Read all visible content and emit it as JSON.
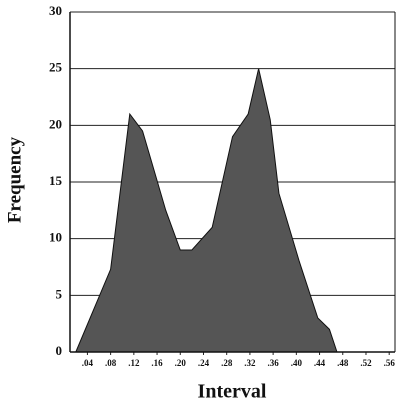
{
  "chart_data": {
    "type": "area",
    "x_label": "Interval",
    "y_label": "Frequency",
    "x": [
      0.02,
      0.08,
      0.113,
      0.135,
      0.155,
      0.175,
      0.2,
      0.22,
      0.255,
      0.29,
      0.317,
      0.335,
      0.355,
      0.37,
      0.405,
      0.437,
      0.457,
      0.47
    ],
    "values": [
      0,
      7.3,
      21,
      19.5,
      16,
      12.5,
      9,
      9,
      11,
      19,
      21,
      25,
      20.5,
      14,
      8,
      3,
      2,
      0
    ],
    "color": "#555555",
    "xlim": [
      0.01,
      0.57
    ],
    "xticks": [
      {
        "value": 0.04,
        "label": ".04"
      },
      {
        "value": 0.08,
        "label": ".08"
      },
      {
        "value": 0.12,
        "label": ".12"
      },
      {
        "value": 0.16,
        "label": ".16"
      },
      {
        "value": 0.2,
        "label": ".20"
      },
      {
        "value": 0.24,
        "label": ".24"
      },
      {
        "value": 0.28,
        "label": ".28"
      },
      {
        "value": 0.32,
        "label": ".32"
      },
      {
        "value": 0.36,
        "label": ".36"
      },
      {
        "value": 0.4,
        "label": ".40"
      },
      {
        "value": 0.44,
        "label": ".44"
      },
      {
        "value": 0.48,
        "label": ".48"
      },
      {
        "value": 0.52,
        "label": ".52"
      },
      {
        "value": 0.56,
        "label": ".56"
      }
    ],
    "ylim": [
      0,
      30
    ],
    "yticks": [
      0,
      5,
      10,
      15,
      20,
      25,
      30
    ],
    "grid": true
  }
}
